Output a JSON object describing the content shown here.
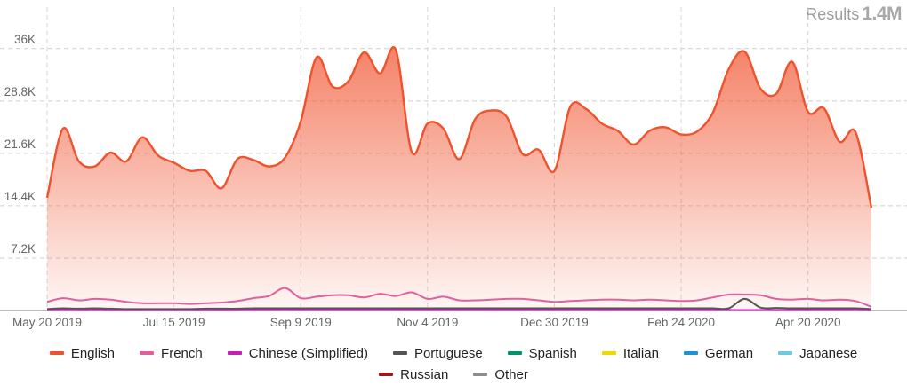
{
  "results": {
    "label": "Results",
    "value": "1.4M"
  },
  "chart_data": {
    "type": "area",
    "ylim": [
      0,
      40000
    ],
    "y_ticks": [
      7200,
      14400,
      21600,
      28800,
      36000
    ],
    "y_tick_labels": [
      "7.2K",
      "14.4K",
      "21.6K",
      "28.8K",
      "36K"
    ],
    "x_tick_labels": [
      "May 20 2019",
      "Jul 15 2019",
      "Sep 9 2019",
      "Nov 4 2019",
      "Dec 30 2019",
      "Feb 24 2020",
      "Apr 20 2020"
    ],
    "x_tick_weeks": [
      0,
      8,
      16,
      24,
      32,
      40,
      48
    ],
    "grid": true,
    "legend_position": "bottom",
    "series": [
      {
        "name": "English",
        "color": "#f0522d",
        "values": [
          15500,
          25000,
          20500,
          19800,
          21700,
          20500,
          23800,
          21300,
          20300,
          19200,
          19200,
          16800,
          20800,
          20700,
          19800,
          21000,
          26000,
          34800,
          30800,
          31500,
          35500,
          32600,
          35800,
          21800,
          25700,
          25000,
          20800,
          26300,
          27500,
          26600,
          21500,
          22100,
          19200,
          28000,
          27700,
          25700,
          24700,
          22800,
          24700,
          25200,
          24200,
          24600,
          27200,
          33200,
          35600,
          30500,
          29800,
          34200,
          27300,
          27800,
          23200,
          24500,
          14100
        ]
      },
      {
        "name": "French",
        "color": "#e0609e",
        "values": [
          1200,
          1700,
          1400,
          1600,
          1500,
          1200,
          1000,
          1000,
          1000,
          900,
          1000,
          1100,
          1300,
          1700,
          2000,
          3100,
          1700,
          1900,
          2100,
          2100,
          1800,
          2300,
          2000,
          2500,
          1600,
          1900,
          1400,
          1400,
          1500,
          1600,
          1600,
          1400,
          1200,
          1300,
          1400,
          1500,
          1500,
          1400,
          1500,
          1400,
          1300,
          1400,
          1800,
          2200,
          2200,
          2100,
          1600,
          1500,
          1600,
          1400,
          1500,
          1300,
          500
        ]
      },
      {
        "name": "Chinese (Simplified)",
        "color": "#c41fb4",
        "values": [
          50,
          60,
          50,
          60,
          50,
          50,
          50,
          50,
          50,
          50,
          50,
          50,
          50,
          60,
          60,
          70,
          60,
          60,
          60,
          60,
          60,
          70,
          60,
          60,
          60,
          60,
          60,
          60,
          60,
          60,
          60,
          60,
          60,
          60,
          60,
          60,
          60,
          60,
          60,
          60,
          60,
          60,
          60,
          60,
          60,
          60,
          60,
          60,
          60,
          60,
          60,
          60,
          40
        ]
      },
      {
        "name": "Portuguese",
        "color": "#555555",
        "values": [
          200,
          300,
          250,
          300,
          250,
          200,
          200,
          200,
          200,
          200,
          250,
          250,
          250,
          300,
          300,
          300,
          300,
          300,
          300,
          300,
          300,
          300,
          300,
          300,
          300,
          300,
          300,
          300,
          300,
          300,
          300,
          300,
          300,
          300,
          300,
          300,
          300,
          300,
          300,
          300,
          300,
          300,
          300,
          300,
          1600,
          400,
          350,
          300,
          300,
          300,
          300,
          300,
          200
        ]
      },
      {
        "name": "Spanish",
        "color": "#00926d",
        "values": []
      },
      {
        "name": "Italian",
        "color": "#f2d600",
        "values": []
      },
      {
        "name": "German",
        "color": "#1a94d4",
        "values": []
      },
      {
        "name": "Japanese",
        "color": "#6cc9e0",
        "values": []
      },
      {
        "name": "Russian",
        "color": "#9b1b1b",
        "values": []
      },
      {
        "name": "Other",
        "color": "#8c8c8c",
        "values": []
      }
    ]
  }
}
